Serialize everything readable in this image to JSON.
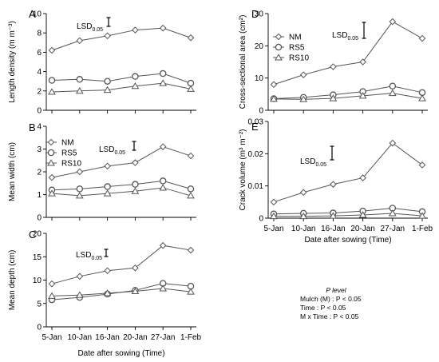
{
  "chart_data": [
    {
      "panel": "A",
      "type": "line",
      "x": [
        "5-Jan",
        "10-Jan",
        "16-Jan",
        "20-Jan",
        "27-Jan",
        "1-Feb"
      ],
      "xlabel": "",
      "ylabel": "Length density (m m⁻³)",
      "ylim": [
        0,
        10
      ],
      "yticks": [
        0,
        2,
        4,
        6,
        8,
        10
      ],
      "lsd_label": "LSD",
      "lsd_sub": "0.05",
      "lsd_value": 0.7,
      "series": [
        {
          "key": "NM",
          "marker": "diamond",
          "values": [
            6.2,
            7.2,
            7.7,
            8.3,
            8.5,
            7.5
          ]
        },
        {
          "key": "RS5",
          "marker": "circle",
          "values": [
            3.1,
            3.2,
            3.0,
            3.5,
            3.8,
            2.8
          ]
        },
        {
          "key": "RS10",
          "marker": "triangle",
          "values": [
            1.9,
            2.0,
            2.1,
            2.5,
            2.8,
            2.2
          ]
        }
      ]
    },
    {
      "panel": "B",
      "type": "line",
      "x": [
        "5-Jan",
        "10-Jan",
        "16-Jan",
        "20-Jan",
        "27-Jan",
        "1-Feb"
      ],
      "xlabel": "",
      "ylabel": "Mean width (cm)",
      "ylim": [
        0,
        4
      ],
      "yticks": [
        0,
        1,
        2,
        3,
        4
      ],
      "lsd_label": "LSD",
      "lsd_sub": "0.05",
      "lsd_value": 0.25,
      "legend": true,
      "series": [
        {
          "name": "NM",
          "key": "NM",
          "marker": "diamond",
          "values": [
            1.75,
            2.0,
            2.25,
            2.4,
            3.1,
            2.7
          ]
        },
        {
          "name": "RS5",
          "key": "RS5",
          "marker": "circle",
          "values": [
            1.2,
            1.25,
            1.35,
            1.45,
            1.6,
            1.25
          ]
        },
        {
          "name": "RS10",
          "key": "RS10",
          "marker": "triangle",
          "values": [
            1.05,
            0.95,
            1.05,
            1.15,
            1.3,
            0.95
          ]
        }
      ]
    },
    {
      "panel": "C",
      "type": "line",
      "x": [
        "5-Jan",
        "10-Jan",
        "16-Jan",
        "20-Jan",
        "27-Jan",
        "1-Feb"
      ],
      "xlabel": "Date after sowing (Time)",
      "ylabel": "Mean depth (cm)",
      "ylim": [
        0,
        20
      ],
      "yticks": [
        0,
        5,
        10,
        15,
        20
      ],
      "lsd_label": "LSD",
      "lsd_sub": "0.05",
      "lsd_value": 1.0,
      "series": [
        {
          "key": "NM",
          "marker": "diamond",
          "values": [
            9.2,
            10.8,
            12.0,
            12.6,
            17.4,
            16.4
          ]
        },
        {
          "key": "RS5",
          "marker": "circle",
          "values": [
            5.8,
            6.3,
            7.0,
            7.8,
            9.3,
            8.7
          ]
        },
        {
          "key": "RS10",
          "marker": "triangle",
          "values": [
            6.6,
            6.8,
            7.2,
            7.6,
            8.2,
            7.5
          ]
        }
      ]
    },
    {
      "panel": "D",
      "type": "line",
      "x": [
        "5-Jan",
        "10-Jan",
        "16-Jan",
        "20-Jan",
        "27-Jan",
        "1-Feb"
      ],
      "xlabel": "",
      "ylabel": "Cross-sectional area (cm²)",
      "ylim": [
        0,
        30
      ],
      "yticks": [
        0,
        10,
        20,
        30
      ],
      "lsd_label": "LSD",
      "lsd_sub": "0.05",
      "lsd_value": 5.0,
      "legend": true,
      "series": [
        {
          "name": "NM",
          "key": "NM",
          "marker": "diamond",
          "values": [
            8.0,
            11.0,
            13.5,
            15.0,
            27.5,
            22.3
          ]
        },
        {
          "name": "RS5",
          "key": "RS5",
          "marker": "circle",
          "values": [
            3.6,
            4.0,
            4.8,
            5.8,
            7.5,
            5.5
          ]
        },
        {
          "name": "RS10",
          "key": "RS10",
          "marker": "triangle",
          "values": [
            3.5,
            3.4,
            3.7,
            4.5,
            5.3,
            3.7
          ]
        }
      ]
    },
    {
      "panel": "E",
      "type": "line",
      "x": [
        "5-Jan",
        "10-Jan",
        "16-Jan",
        "20-Jan",
        "27-Jan",
        "1-Feb"
      ],
      "xlabel": "Date after sowing (Time)",
      "ylabel": "Crack volume (m³ m⁻²)",
      "ylim": [
        0,
        0.03
      ],
      "yticks": [
        0,
        0.01,
        0.02,
        0.03
      ],
      "lsd_label": "LSD",
      "lsd_sub": "0.05",
      "lsd_value": 0.004,
      "series": [
        {
          "key": "NM",
          "marker": "diamond",
          "values": [
            0.005,
            0.008,
            0.0105,
            0.0125,
            0.0233,
            0.0165
          ]
        },
        {
          "key": "RS5",
          "marker": "circle",
          "values": [
            0.0013,
            0.0015,
            0.0016,
            0.0022,
            0.0031,
            0.002
          ]
        },
        {
          "key": "RS10",
          "marker": "triangle",
          "values": [
            0.0006,
            0.0006,
            0.0007,
            0.001,
            0.0015,
            0.0007
          ]
        }
      ]
    }
  ],
  "stats": {
    "header": "P level",
    "rows": [
      "Mulch (M) : P < 0.05",
      "Time : P < 0.05",
      "M x Time : P < 0.05"
    ]
  }
}
